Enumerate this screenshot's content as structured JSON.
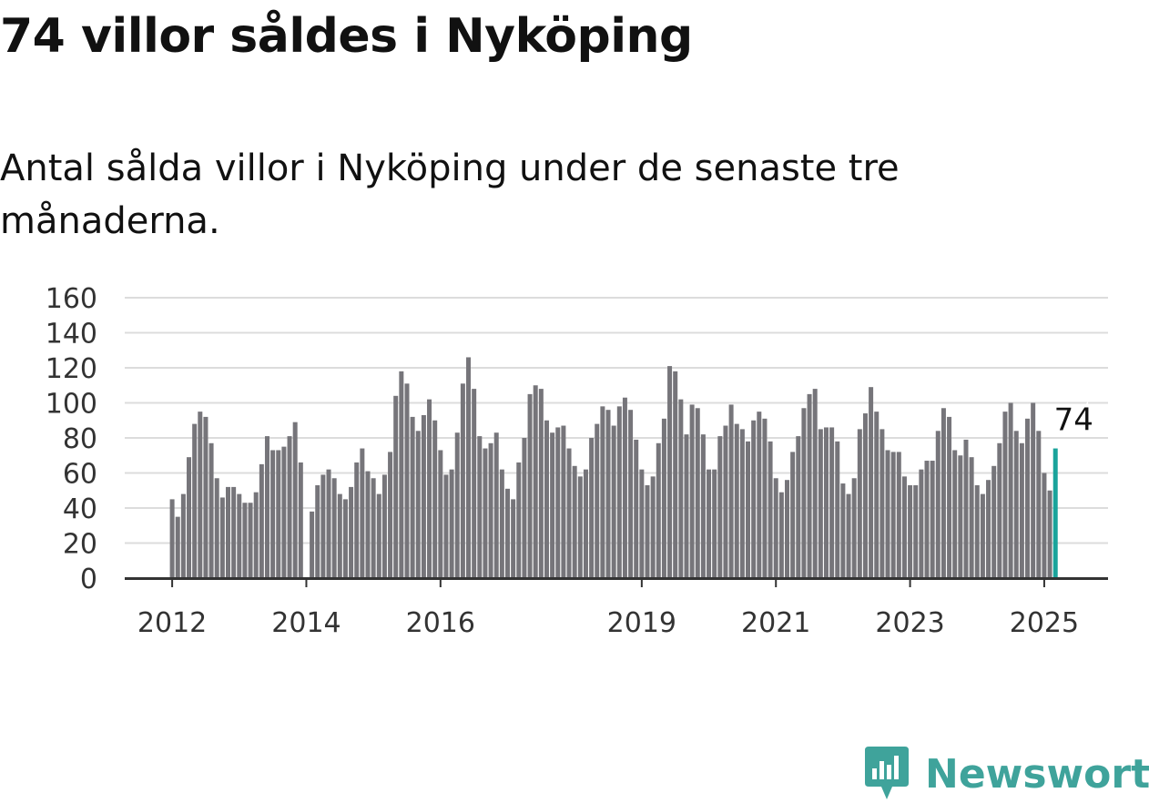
{
  "title": "74 villor såldes i Nyköping",
  "subtitle": "Antal sålda villor i Nyköping under de senaste tre månaderna.",
  "brand": {
    "name": "Newsworthy",
    "icon": "newsworthy-logo-icon",
    "color": "#3fa39b"
  },
  "chart_data": {
    "type": "bar",
    "x_start": "2012-01",
    "x_ticks": [
      "2012",
      "2014",
      "2016",
      "2019",
      "2021",
      "2023",
      "2025"
    ],
    "y_ticks": [
      "0",
      "20",
      "40",
      "60",
      "80",
      "100",
      "120",
      "140",
      "160"
    ],
    "ylim": [
      0,
      160
    ],
    "grid": true,
    "bar_color": "#76757a",
    "highlight_color": "#1aa39b",
    "highlight_label": "74",
    "values": [
      45,
      35,
      48,
      69,
      88,
      95,
      92,
      77,
      57,
      46,
      52,
      52,
      48,
      43,
      43,
      49,
      65,
      81,
      73,
      73,
      75,
      81,
      89,
      66,
      0,
      38,
      53,
      59,
      62,
      57,
      48,
      45,
      52,
      66,
      74,
      61,
      57,
      48,
      59,
      72,
      104,
      118,
      111,
      92,
      84,
      93,
      102,
      90,
      73,
      59,
      62,
      83,
      111,
      126,
      108,
      81,
      74,
      77,
      83,
      62,
      51,
      45,
      66,
      80,
      105,
      110,
      108,
      90,
      83,
      86,
      87,
      74,
      64,
      58,
      62,
      80,
      88,
      98,
      96,
      87,
      98,
      103,
      96,
      79,
      62,
      53,
      58,
      77,
      91,
      121,
      118,
      102,
      82,
      99,
      97,
      82,
      62,
      62,
      81,
      87,
      99,
      88,
      85,
      78,
      90,
      95,
      91,
      78,
      57,
      49,
      56,
      72,
      81,
      97,
      105,
      108,
      85,
      86,
      86,
      78,
      54,
      48,
      57,
      85,
      94,
      109,
      95,
      85,
      73,
      72,
      72,
      58,
      53,
      53,
      62,
      67,
      67,
      84,
      97,
      92,
      73,
      70,
      79,
      69,
      53,
      48,
      56,
      64,
      77,
      95,
      100,
      84,
      77,
      91,
      100,
      84,
      60,
      50,
      74
    ]
  }
}
